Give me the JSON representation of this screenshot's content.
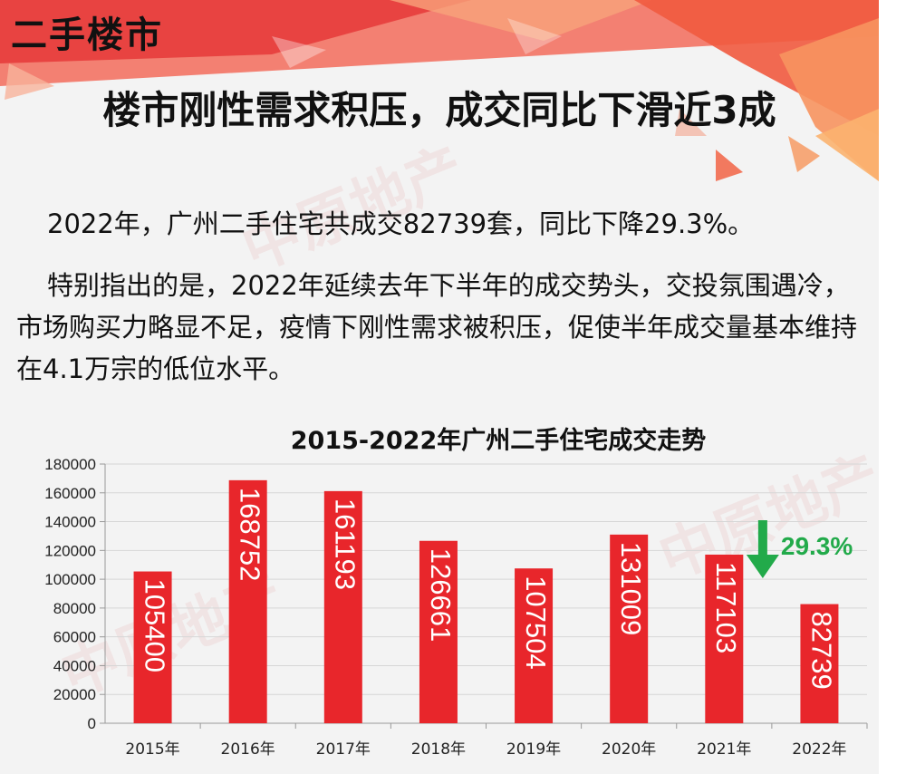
{
  "section_label": "二手楼市",
  "headline": "楼市刚性需求积压，成交同比下滑近3成",
  "paragraphs": [
    "2022年，广州二手住宅共成交82739套，同比下降29.3%。",
    "特别指出的是，2022年延续去年下半年的成交势头，交投氛围遇冷，市场购买力略显不足，疫情下刚性需求被积压，促使半年成交量基本维持在4.1万宗的低位水平。"
  ],
  "watermark": "中原地产",
  "chart_data": {
    "type": "bar",
    "title": "2015-2022年广州二手住宅成交走势",
    "categories": [
      "2015年",
      "2016年",
      "2017年",
      "2018年",
      "2019年",
      "2020年",
      "2021年",
      "2022年"
    ],
    "values": [
      105400,
      168752,
      161193,
      126661,
      107504,
      131009,
      117103,
      82739
    ],
    "value_labels": [
      "105400",
      "168752",
      "161193",
      "126661",
      "107504",
      "131009",
      "117103",
      "82739"
    ],
    "ylim": [
      0,
      180000
    ],
    "y_ticks": [
      "0",
      "20000",
      "40000",
      "60000",
      "80000",
      "100000",
      "120000",
      "140000",
      "160000",
      "180000"
    ],
    "xlabel": "",
    "ylabel": "",
    "grid": true,
    "bar_color": "#e8262b",
    "annotation": {
      "text": "29.3%",
      "color": "#22aa4a",
      "direction": "down",
      "between": [
        "2021年",
        "2022年"
      ]
    }
  }
}
